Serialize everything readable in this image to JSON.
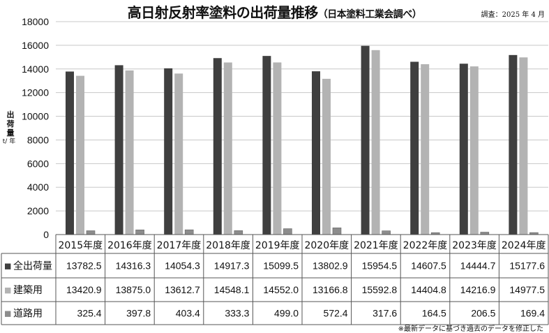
{
  "chart_data": {
    "type": "bar",
    "title": "高日射反射率塗料の出荷量推移",
    "subtitle": "（日本塗料工業会調べ）",
    "survey_note": "調査：2025 年 4 月",
    "ylabel": "出荷量",
    "yunit": "t/ 年",
    "ylim": [
      0,
      18000
    ],
    "yticks": [
      0,
      2000,
      4000,
      6000,
      8000,
      10000,
      12000,
      14000,
      16000,
      18000
    ],
    "grid": true,
    "categories": [
      "2015年度",
      "2016年度",
      "2017年度",
      "2018年度",
      "2019年度",
      "2020年度",
      "2021年度",
      "2022年度",
      "2023年度",
      "2024年度"
    ],
    "series": [
      {
        "name": "全出荷量",
        "color": "#3f3f3f",
        "values": [
          13782.5,
          14316.3,
          14054.3,
          14917.3,
          15099.5,
          13802.9,
          15954.5,
          14607.5,
          14444.7,
          15177.6
        ],
        "labels": [
          "13782.5",
          "14316.3",
          "14054.3",
          "14917.3",
          "15099.5",
          "13802.9",
          "15954.5",
          "14607.5",
          "14444.7",
          "15177.6"
        ]
      },
      {
        "name": "建築用",
        "color": "#b3b3b3",
        "values": [
          13420.9,
          13875.0,
          13612.7,
          14548.1,
          14552.0,
          13166.8,
          15592.8,
          14404.8,
          14216.9,
          14977.5
        ],
        "labels": [
          "13420.9",
          "13875.0",
          "13612.7",
          "14548.1",
          "14552.0",
          "13166.8",
          "15592.8",
          "14404.8",
          "14216.9",
          "14977.5"
        ]
      },
      {
        "name": "道路用",
        "color": "#8c8c8c",
        "values": [
          325.4,
          397.8,
          403.4,
          333.3,
          499.0,
          572.4,
          317.6,
          164.5,
          206.5,
          169.4
        ],
        "labels": [
          "325.4",
          "397.8",
          "403.4",
          "333.3",
          "499.0",
          "572.4",
          "317.6",
          "164.5",
          "206.5",
          "169.4"
        ]
      }
    ],
    "legend_marker": "■",
    "footnote": "※最新データに基づき過去のデータを修正した"
  }
}
